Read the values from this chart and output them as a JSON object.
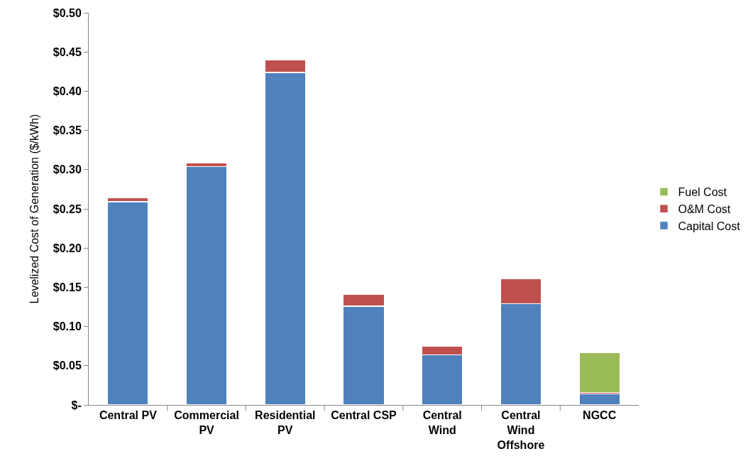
{
  "chart_data": {
    "type": "bar",
    "stacked": true,
    "ylabel": "Levelized Cost of Generation ($/kWh)",
    "categories": [
      "Central PV",
      "Commercial PV",
      "Residential PV",
      "Central CSP",
      "Central Wind",
      "Central Wind Offshore",
      "NGCC"
    ],
    "series": [
      {
        "name": "Capital Cost",
        "color": "#4f81bd",
        "values": [
          0.259,
          0.304,
          0.424,
          0.126,
          0.064,
          0.129,
          0.014
        ]
      },
      {
        "name": "O&M Cost",
        "color": "#c0504d",
        "values": [
          0.005,
          0.005,
          0.016,
          0.015,
          0.011,
          0.032,
          0.002
        ]
      },
      {
        "name": "Fuel Cost",
        "color": "#9bbb59",
        "values": [
          null,
          null,
          null,
          null,
          null,
          null,
          0.051
        ]
      }
    ],
    "ylim": [
      0,
      0.5
    ],
    "yticks": [
      {
        "value": 0,
        "label": "$-"
      },
      {
        "value": 0.05,
        "label": "$0.05"
      },
      {
        "value": 0.1,
        "label": "$0.10"
      },
      {
        "value": 0.15,
        "label": "$0.15"
      },
      {
        "value": 0.2,
        "label": "$0.20"
      },
      {
        "value": 0.25,
        "label": "$0.25"
      },
      {
        "value": 0.3,
        "label": "$0.30"
      },
      {
        "value": 0.35,
        "label": "$0.35"
      },
      {
        "value": 0.4,
        "label": "$0.40"
      },
      {
        "value": 0.45,
        "label": "$0.45"
      },
      {
        "value": 0.5,
        "label": "$0.50"
      }
    ],
    "grid": false,
    "legend": "right"
  }
}
